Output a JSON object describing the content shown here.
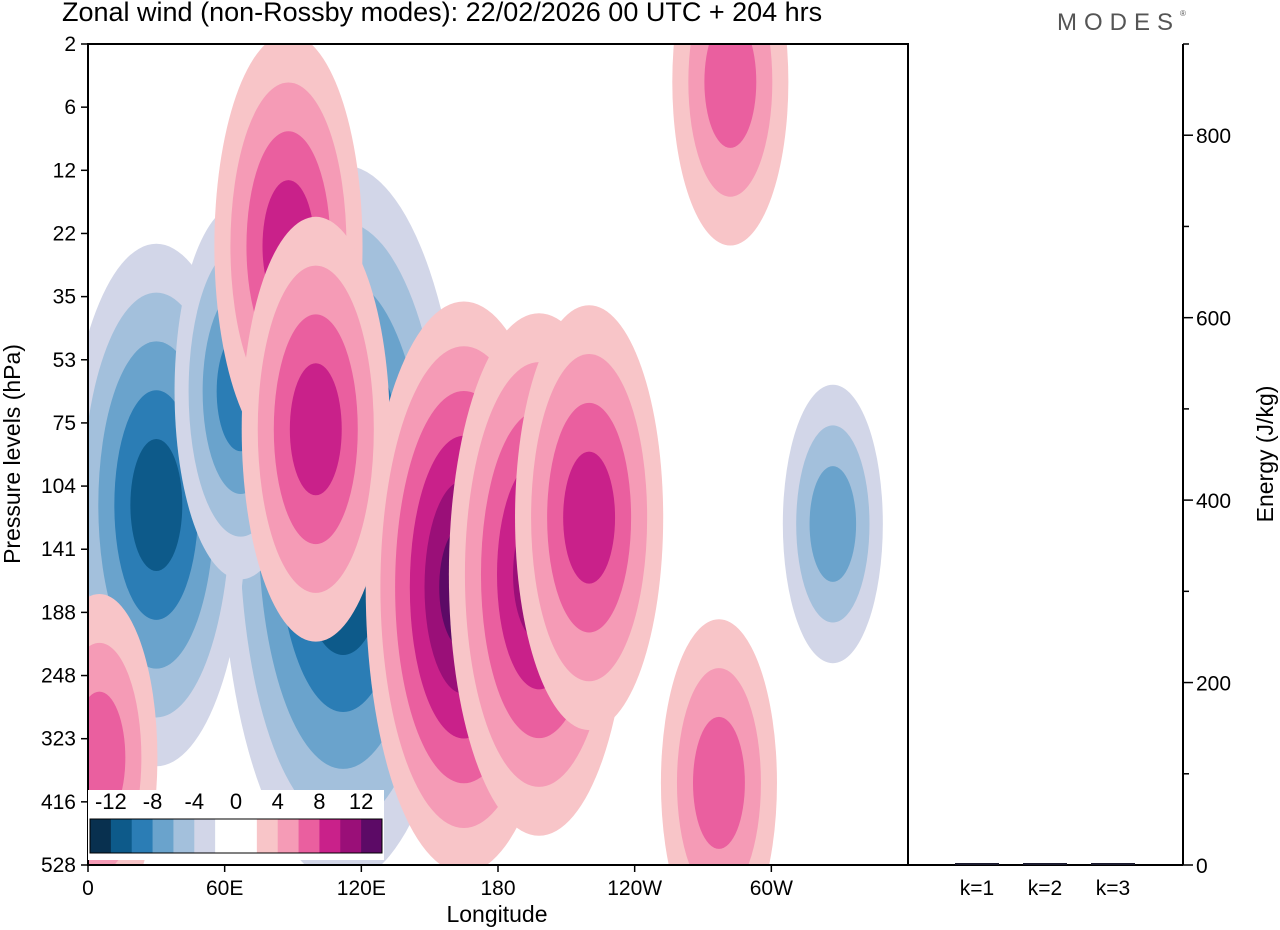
{
  "header": {
    "title": "Zonal wind (non-Rossby modes):  22/02/2026  00 UTC  + 204 hrs",
    "logo": "MODES",
    "logo_mark": "®"
  },
  "chart_data": [
    {
      "type": "heatmap",
      "title": "Zonal wind (non-Rossby modes):  22/02/2026  00 UTC  + 204 hrs",
      "xlabel": "Longitude",
      "ylabel": "Pressure levels (hPa)",
      "x_ticks": [
        "0",
        "60E",
        "120E",
        "180",
        "120W",
        "60W"
      ],
      "x_tick_values": [
        0,
        60,
        120,
        180,
        240,
        300
      ],
      "xlim": [
        0,
        360
      ],
      "y_ticks": [
        "2",
        "6",
        "12",
        "22",
        "35",
        "53",
        "75",
        "104",
        "141",
        "188",
        "248",
        "323",
        "416",
        "528"
      ],
      "colorbar": {
        "labels": [
          "-12",
          "-8",
          "-4",
          "0",
          "4",
          "8",
          "12"
        ],
        "colors": [
          "#08304f",
          "#0d5a8a",
          "#2b7db5",
          "#6aa3cc",
          "#a3c0dc",
          "#d2d6e8",
          "#ffffff",
          "#ffffff",
          "#f8c5c8",
          "#f59bb6",
          "#ea5f9f",
          "#c9218a",
          "#9a0f78",
          "#5c0a66"
        ]
      },
      "features": [
        {
          "name": "negative-core-A",
          "lon": 112,
          "level_index": 7.6,
          "value": -14
        },
        {
          "name": "negative-core-B",
          "lon": 30,
          "level_index": 7.3,
          "value": -10
        },
        {
          "name": "negative-core-C",
          "lon": 67,
          "level_index": 5.5,
          "value": -7
        },
        {
          "name": "positive-core-A",
          "lon": 165,
          "level_index": 8.6,
          "value": 11
        },
        {
          "name": "positive-core-B",
          "lon": 198,
          "level_index": 8.4,
          "value": 10
        },
        {
          "name": "positive-core-C",
          "lon": 220,
          "level_index": 7.5,
          "value": 8
        },
        {
          "name": "positive-band-upper",
          "lon": 88,
          "level_index": 3.2,
          "value": 8
        },
        {
          "name": "positive-band-mid",
          "lon": 100,
          "level_index": 6.1,
          "value": 8
        },
        {
          "name": "positive-west-edge",
          "lon": 5,
          "level_index": 11.3,
          "value": 6
        },
        {
          "name": "positive-lower",
          "lon": 277,
          "level_index": 11.7,
          "value": 6
        },
        {
          "name": "positive-upper-right",
          "lon": 282,
          "level_index": 0.6,
          "value": 6
        },
        {
          "name": "negative-right",
          "lon": 327,
          "level_index": 7.6,
          "value": -5
        }
      ]
    },
    {
      "type": "bar",
      "ylabel": "Energy (J/kg)",
      "categories": [
        "k=1",
        "k=2",
        "k=3"
      ],
      "values": [
        2,
        1.5,
        1
      ],
      "ylim": [
        0,
        900
      ],
      "y_ticks": [
        "0",
        "200",
        "400",
        "600",
        "800"
      ],
      "y_tick_values": [
        0,
        200,
        400,
        600,
        800
      ],
      "bar_color": "#1a1a2e"
    }
  ]
}
